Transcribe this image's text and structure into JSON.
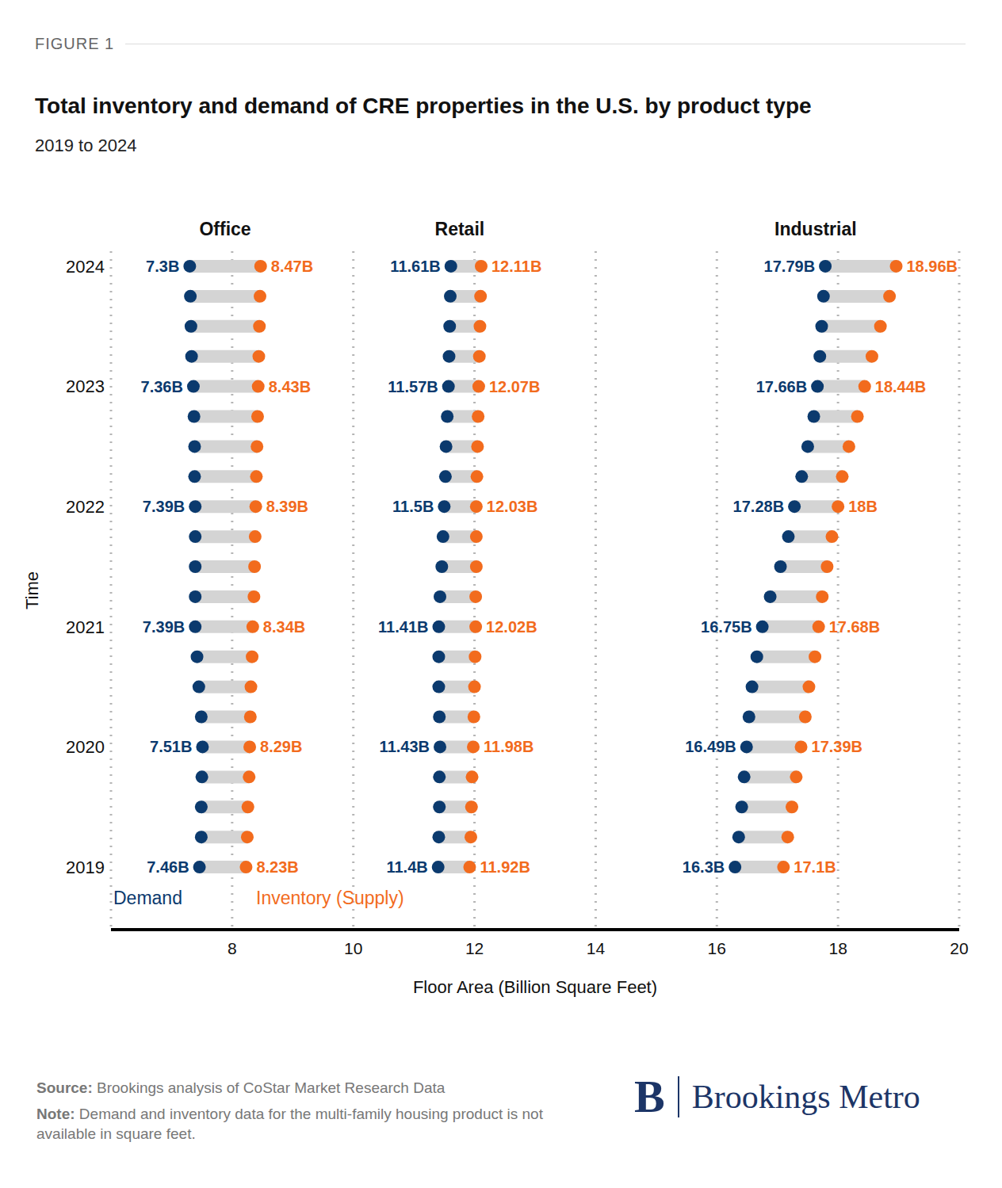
{
  "chart_data": {
    "type": "dumbbell",
    "figure_label": "FIGURE 1",
    "title": "Total inventory and demand of CRE properties in the U.S. by product type",
    "subtitle": "2019 to 2024",
    "x_label": "Floor Area (Billion Square Feet)",
    "y_label": "Time",
    "categories": [
      "2019",
      null,
      null,
      null,
      "2020",
      null,
      null,
      null,
      "2021",
      null,
      null,
      null,
      "2022",
      null,
      null,
      null,
      "2023",
      null,
      null,
      null,
      "2024"
    ],
    "xlim": [
      6,
      20
    ],
    "xticks": [
      8,
      10,
      12,
      14,
      16,
      18,
      20
    ],
    "grid": true,
    "data_labels": true,
    "groups": [
      {
        "name": "Office",
        "series": [
          {
            "name": "Demand",
            "color": "#0b3a6e",
            "values": [
              7.46,
              7.49,
              7.49,
              7.5,
              7.51,
              7.49,
              7.45,
              7.42,
              7.39,
              7.39,
              7.39,
              7.39,
              7.39,
              7.38,
              7.38,
              7.37,
              7.36,
              7.33,
              7.32,
              7.31,
              7.3
            ],
            "value_labels": [
              "7.46B",
              null,
              null,
              null,
              "7.51B",
              null,
              null,
              null,
              "7.39B",
              null,
              null,
              null,
              "7.39B",
              null,
              null,
              null,
              "7.36B",
              null,
              null,
              null,
              "7.3B"
            ]
          },
          {
            "name": "Inventory (Supply)",
            "color": "#f26b1d",
            "values": [
              8.23,
              8.25,
              8.26,
              8.28,
              8.29,
              8.3,
              8.31,
              8.33,
              8.34,
              8.36,
              8.37,
              8.38,
              8.39,
              8.4,
              8.41,
              8.42,
              8.43,
              8.44,
              8.45,
              8.46,
              8.47
            ],
            "value_labels": [
              "8.23B",
              null,
              null,
              null,
              "8.29B",
              null,
              null,
              null,
              "8.34B",
              null,
              null,
              null,
              "8.39B",
              null,
              null,
              null,
              "8.43B",
              null,
              null,
              null,
              "8.47B"
            ]
          }
        ]
      },
      {
        "name": "Retail",
        "series": [
          {
            "name": "Demand",
            "color": "#0b3a6e",
            "values": [
              11.4,
              11.41,
              11.42,
              11.42,
              11.43,
              11.42,
              11.41,
              11.41,
              11.41,
              11.43,
              11.46,
              11.48,
              11.5,
              11.52,
              11.53,
              11.55,
              11.57,
              11.58,
              11.59,
              11.6,
              11.61
            ],
            "value_labels": [
              "11.4B",
              null,
              null,
              null,
              "11.43B",
              null,
              null,
              null,
              "11.41B",
              null,
              null,
              null,
              "11.5B",
              null,
              null,
              null,
              "11.57B",
              null,
              null,
              null,
              "11.61B"
            ]
          },
          {
            "name": "Inventory (Supply)",
            "color": "#f26b1d",
            "values": [
              11.92,
              11.94,
              11.95,
              11.96,
              11.98,
              11.99,
              12.0,
              12.01,
              12.02,
              12.02,
              12.03,
              12.03,
              12.03,
              12.04,
              12.05,
              12.06,
              12.07,
              12.08,
              12.09,
              12.1,
              12.11
            ],
            "value_labels": [
              "11.92B",
              null,
              null,
              null,
              "11.98B",
              null,
              null,
              null,
              "12.02B",
              null,
              null,
              null,
              "12.03B",
              null,
              null,
              null,
              "12.07B",
              null,
              null,
              null,
              "12.11B"
            ]
          }
        ]
      },
      {
        "name": "Industrial",
        "series": [
          {
            "name": "Demand",
            "color": "#0b3a6e",
            "values": [
              16.3,
              16.36,
              16.41,
              16.45,
              16.49,
              16.53,
              16.58,
              16.66,
              16.75,
              16.88,
              17.05,
              17.18,
              17.28,
              17.4,
              17.5,
              17.6,
              17.66,
              17.7,
              17.73,
              17.76,
              17.79
            ],
            "value_labels": [
              "16.3B",
              null,
              null,
              null,
              "16.49B",
              null,
              null,
              null,
              "16.75B",
              null,
              null,
              null,
              "17.28B",
              null,
              null,
              null,
              "17.66B",
              null,
              null,
              null,
              "17.79B"
            ]
          },
          {
            "name": "Inventory (Supply)",
            "color": "#f26b1d",
            "values": [
              17.1,
              17.17,
              17.24,
              17.31,
              17.39,
              17.46,
              17.52,
              17.62,
              17.68,
              17.74,
              17.82,
              17.9,
              18.0,
              18.07,
              18.18,
              18.32,
              18.44,
              18.56,
              18.7,
              18.85,
              18.96
            ],
            "value_labels": [
              "17.1B",
              null,
              null,
              null,
              "17.39B",
              null,
              null,
              null,
              "17.68B",
              null,
              null,
              null,
              "18B",
              null,
              null,
              null,
              "18.44B",
              null,
              null,
              null,
              "18.96B"
            ]
          }
        ]
      }
    ],
    "source_label": "Source:",
    "source": "Brookings analysis of CoStar Market Research Data",
    "note_label": "Note:",
    "note": "Demand and inventory data for the multi-family housing product is not available in square feet.",
    "logo_letter": "B",
    "brand": "Brookings Metro"
  }
}
